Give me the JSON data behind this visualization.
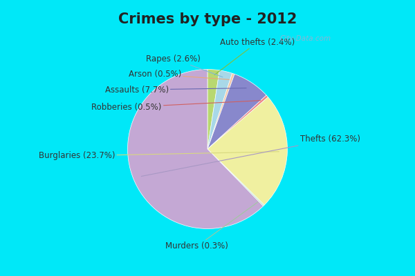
{
  "title": "Crimes by type - 2012",
  "ordered_labels": [
    "Auto thefts",
    "Rapes",
    "Arson",
    "Assaults",
    "Robberies",
    "Burglaries",
    "Murders",
    "Thefts"
  ],
  "ordered_values": [
    2.4,
    2.6,
    0.5,
    7.7,
    0.5,
    23.7,
    0.3,
    62.3
  ],
  "ordered_colors": [
    "#b8d870",
    "#a8d8e8",
    "#f5c8a8",
    "#8888cc",
    "#f08888",
    "#f0f0a0",
    "#c8e8c8",
    "#c4a8d4"
  ],
  "line_colors": [
    "#80c040",
    "#80b8d8",
    "#e8a878",
    "#6868b0",
    "#d06060",
    "#d8d880",
    "#a0c8a0",
    "#a898c4"
  ],
  "fig_bg": "#00e8f8",
  "axes_bg_outer": "#00e8f8",
  "axes_bg_inner": "#f0faf5",
  "title_color": "#222222",
  "label_color": "#333333",
  "title_fontsize": 15,
  "label_fontsize": 8.5,
  "watermark": "City-Data.com"
}
